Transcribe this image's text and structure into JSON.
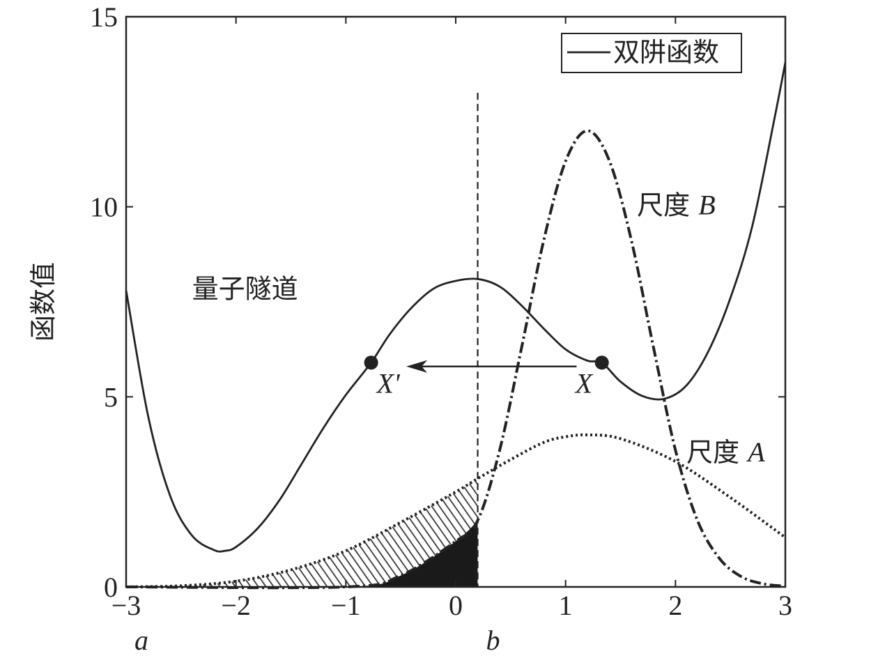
{
  "chart_data": {
    "type": "line",
    "ylabel": "函数值",
    "xlabel": "",
    "xlim": [
      -3,
      3
    ],
    "ylim": [
      0,
      15
    ],
    "x_ticks": [
      -3,
      -2,
      -1,
      0,
      1,
      2,
      3
    ],
    "x_tick_labels": [
      "−3",
      "−2",
      "−1",
      "0",
      "1",
      "2",
      "3"
    ],
    "y_ticks": [
      0,
      5,
      10,
      15
    ],
    "y_tick_labels": [
      "0",
      "5",
      "10",
      "15"
    ],
    "legend": {
      "position": "top-right",
      "entries": [
        {
          "label": "双阱函数",
          "style": "solid"
        }
      ]
    },
    "series": [
      {
        "name": "双阱函数",
        "style": "solid",
        "x": [
          -3,
          -2.8,
          -2.6,
          -2.4,
          -2.2,
          -2.1,
          -2.0,
          -1.8,
          -1.6,
          -1.4,
          -1.2,
          -1.0,
          -0.77,
          -0.6,
          -0.4,
          -0.2,
          0.0,
          0.2,
          0.4,
          0.6,
          0.8,
          1.0,
          1.2,
          1.33,
          1.5,
          1.7,
          1.9,
          2.1,
          2.3,
          2.5,
          2.7,
          2.9,
          3.0
        ],
        "y": [
          7.8,
          4.5,
          2.4,
          1.35,
          0.97,
          0.95,
          1.05,
          1.55,
          2.3,
          3.25,
          4.2,
          5.05,
          5.9,
          6.65,
          7.35,
          7.85,
          8.05,
          8.1,
          7.9,
          7.4,
          6.8,
          6.25,
          5.95,
          5.9,
          5.4,
          5.02,
          4.95,
          5.3,
          6.2,
          7.6,
          9.5,
          12.3,
          13.8
        ]
      },
      {
        "name": "尺度A",
        "style": "dotted",
        "x": [
          -3,
          -2.5,
          -2.0,
          -1.5,
          -1.0,
          -0.5,
          0.0,
          0.2,
          0.5,
          0.8,
          1.0,
          1.2,
          1.5,
          2.0,
          2.5,
          3.0
        ],
        "y": [
          0.0,
          0.03,
          0.15,
          0.45,
          0.95,
          1.7,
          2.5,
          2.85,
          3.35,
          3.8,
          3.95,
          4.0,
          3.9,
          3.3,
          2.35,
          1.3
        ]
      },
      {
        "name": "尺度B",
        "style": "dashdot",
        "x": [
          -3,
          -1.0,
          -0.5,
          0.0,
          0.2,
          0.4,
          0.6,
          0.8,
          1.0,
          1.2,
          1.4,
          1.6,
          1.8,
          2.0,
          2.2,
          2.4,
          2.6,
          2.8,
          3.0
        ],
        "y": [
          0.0,
          0.0,
          0.3,
          1.2,
          1.75,
          3.6,
          6.3,
          9.1,
          11.2,
          12.0,
          11.2,
          9.1,
          6.3,
          3.6,
          1.75,
          0.75,
          0.27,
          0.08,
          0.02
        ]
      }
    ],
    "vline": {
      "x": 0.2,
      "y_top": 13.0,
      "style": "dashed"
    },
    "points": [
      {
        "label": "X'",
        "x": -0.77,
        "y": 5.9
      },
      {
        "label": "X",
        "x": 1.33,
        "y": 5.9
      }
    ],
    "arrow": {
      "from_x": 1.1,
      "to_x": -0.45,
      "y": 5.8
    },
    "annotations": [
      {
        "text": "量子隧道",
        "x": -2.4,
        "y": 7.6
      },
      {
        "text": "尺度 ",
        "italic": "B",
        "x": 1.65,
        "y": 9.8
      },
      {
        "text": "尺度 ",
        "italic": "A",
        "x": 2.1,
        "y": 3.3
      }
    ],
    "bottom_labels": [
      {
        "text": "a",
        "x": -3
      },
      {
        "text": "b",
        "x": 0.2
      }
    ]
  }
}
